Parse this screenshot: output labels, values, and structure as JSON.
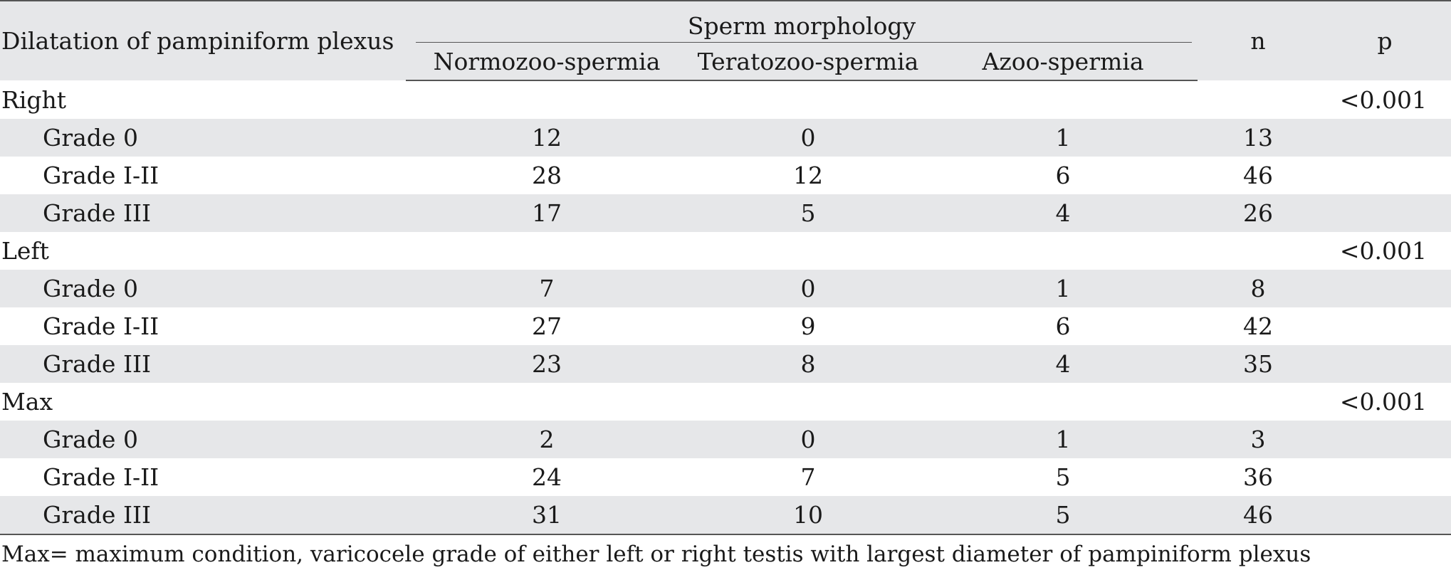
{
  "table": {
    "header": {
      "row_label": "Dilatation of pampiniform plexus",
      "group_title": "Sperm morphology",
      "columns": [
        "Normozoo-spermia",
        "Teratozoo-spermia",
        "Azoo-spermia"
      ],
      "n_label": "n",
      "p_label": "p"
    },
    "sections": [
      {
        "label": "Right",
        "p": "<0.001",
        "rows": [
          {
            "grade": "Grade 0",
            "normo": "12",
            "terato": "0",
            "azoo": "1",
            "n": "13"
          },
          {
            "grade": "Grade I-II",
            "normo": "28",
            "terato": "12",
            "azoo": "6",
            "n": "46"
          },
          {
            "grade": "Grade III",
            "normo": "17",
            "terato": "5",
            "azoo": "4",
            "n": "26"
          }
        ]
      },
      {
        "label": "Left",
        "p": "<0.001",
        "rows": [
          {
            "grade": "Grade 0",
            "normo": "7",
            "terato": "0",
            "azoo": "1",
            "n": "8"
          },
          {
            "grade": "Grade I-II",
            "normo": "27",
            "terato": "9",
            "azoo": "6",
            "n": "42"
          },
          {
            "grade": "Grade III",
            "normo": "23",
            "terato": "8",
            "azoo": "4",
            "n": "35"
          }
        ]
      },
      {
        "label": "Max",
        "p": "<0.001",
        "rows": [
          {
            "grade": "Grade 0",
            "normo": "2",
            "terato": "0",
            "azoo": "1",
            "n": "3"
          },
          {
            "grade": "Grade I-II",
            "normo": "24",
            "terato": "7",
            "azoo": "5",
            "n": "36"
          },
          {
            "grade": "Grade III",
            "normo": "31",
            "terato": "10",
            "azoo": "5",
            "n": "46"
          }
        ]
      }
    ]
  },
  "footnote": "Max= maximum condition, varicocele grade of either left or right testis with largest diameter of pampiniform plexus",
  "colors": {
    "shaded_row": "#e6e7e9",
    "rule": "#555555",
    "text": "#1a1a1a"
  }
}
